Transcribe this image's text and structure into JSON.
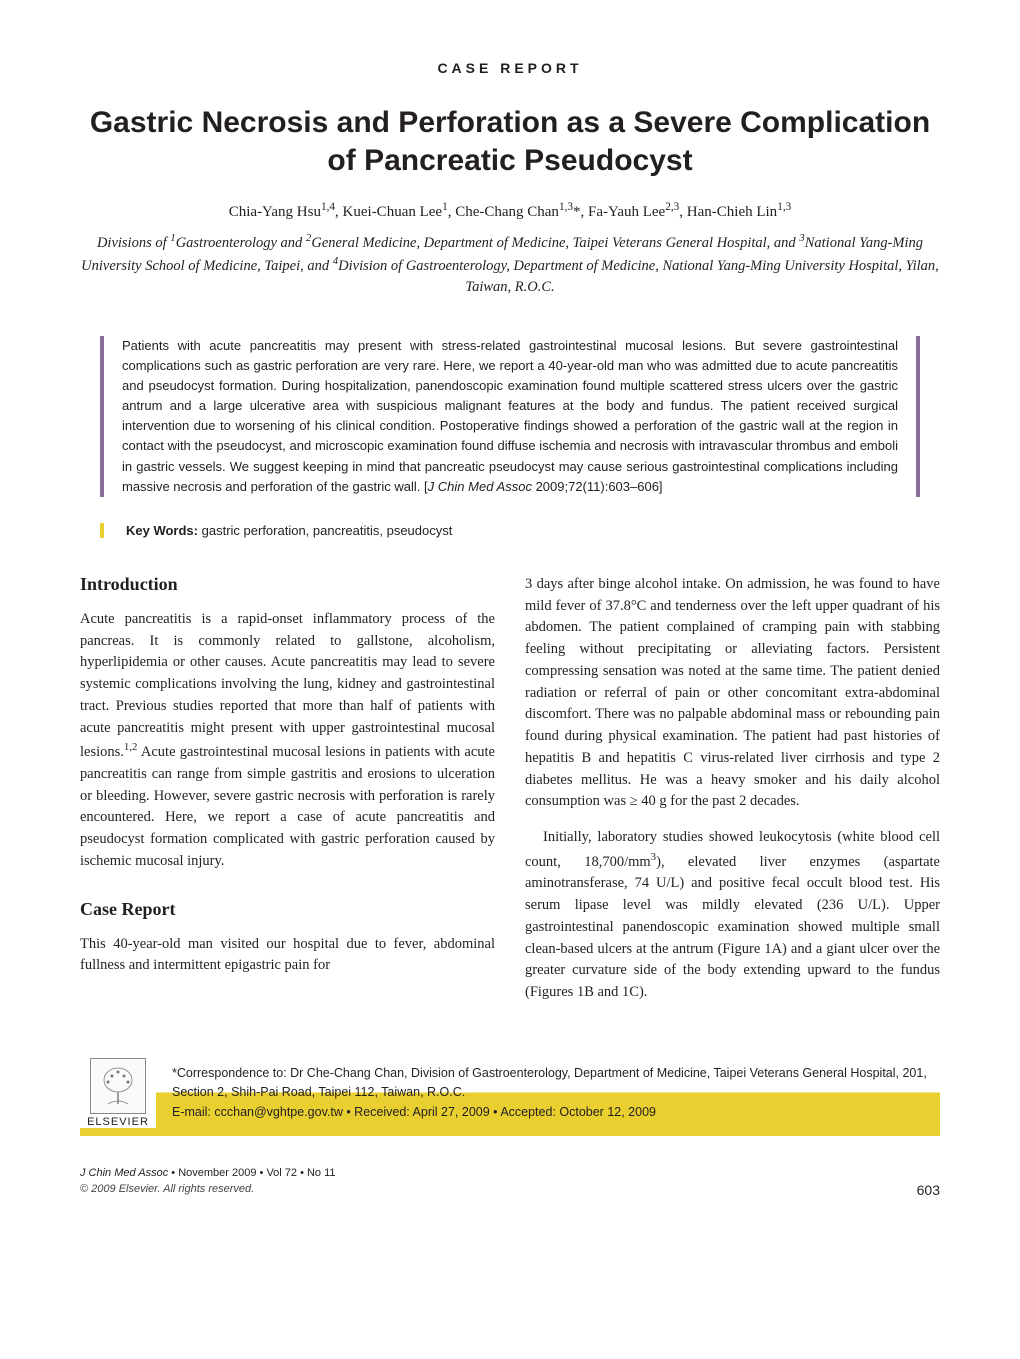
{
  "colors": {
    "text": "#231f20",
    "abstract_border": "#8a6d9b",
    "keywords_border": "#e9cf30",
    "band_yellow": "#e9cf30",
    "background": "#ffffff"
  },
  "section_label": "CASE   REPORT",
  "title": "Gastric Necrosis and Perforation as a Severe Complication of Pancreatic Pseudocyst",
  "authors_html": "Chia-Yang Hsu<sup>1,4</sup>, Kuei-Chuan Lee<sup>1</sup>, Che-Chang Chan<sup>1,3</sup>*, Fa-Yauh Lee<sup>2,3</sup>, Han-Chieh Lin<sup>1,3</sup>",
  "affiliations_html": "Divisions of <sup>1</sup>Gastroenterology and <sup>2</sup>General Medicine, Department of Medicine, Taipei Veterans General Hospital, and <sup>3</sup>National Yang-Ming University School of Medicine, Taipei, and <sup>4</sup>Division of Gastroenterology, Department of Medicine, National Yang-Ming University Hospital, Yilan, Taiwan, R.O.C.",
  "abstract": "Patients with acute pancreatitis may present with stress-related gastrointestinal mucosal lesions. But severe gastrointestinal complications such as gastric perforation are very rare. Here, we report a 40-year-old man who was admitted due to acute pancreatitis and pseudocyst formation. During hospitalization, panendoscopic examination found multiple scattered stress ulcers over the gastric antrum and a large ulcerative area with suspicious malignant features at the body and fundus. The patient received surgical intervention due to worsening of his clinical condition. Postoperative findings showed a perforation of the gastric wall at the region in contact with the pseudocyst, and microscopic examination found diffuse ischemia and necrosis with intravascular thrombus and emboli in gastric vessels. We suggest keeping in mind that pancreatic pseudocyst may cause serious gastrointestinal complications including massive necrosis and perforation of the gastric wall.",
  "abstract_citation_html": "[<i>J Chin Med Assoc</i> 2009;72(11):603–606]",
  "keywords_label": "Key Words:",
  "keywords": "gastric perforation, pancreatitis, pseudocyst",
  "intro_heading": "Introduction",
  "intro_para_html": "Acute pancreatitis is a rapid-onset inflammatory process of the pancreas. It is commonly related to gallstone, alcoholism, hyperlipidemia or other causes. Acute pancreatitis may lead to severe systemic complications involving the lung, kidney and gastrointestinal tract. Previous studies reported that more than half of patients with acute pancreatitis might present with upper gastrointestinal mucosal lesions.<sup>1,2</sup> Acute gastrointestinal mucosal lesions in patients with acute pancreatitis can range from simple gastritis and erosions to ulceration or bleeding. However, severe gastric necrosis with perforation is rarely encountered. Here, we report a case of acute pancreatitis and pseudocyst formation complicated with gastric perforation caused by ischemic mucosal injury.",
  "case_heading": "Case Report",
  "case_para_left": "This 40-year-old man visited our hospital due to fever, abdominal fullness and intermittent epigastric pain for",
  "case_para_right_1": "3 days after binge alcohol intake. On admission, he was found to have mild fever of 37.8°C and tenderness over the left upper quadrant of his abdomen. The patient complained of cramping pain with stabbing feeling without precipitating or alleviating factors. Persistent compressing sensation was noted at the same time. The patient denied radiation or referral of pain or other concomitant extra-abdominal discomfort. There was no palpable abdominal mass or rebounding pain found during physical examination. The patient had past histories of hepatitis B and hepatitis C virus-related liver cirrhosis and type 2 diabetes mellitus. He was a heavy smoker and his daily alcohol consumption was ≥ 40 g for the past 2 decades.",
  "case_para_right_2_html": "Initially, laboratory studies showed leukocytosis (white blood cell count, 18,700/mm<sup>3</sup>), elevated liver enzymes (aspartate aminotransferase, 74 U/L) and positive fecal occult blood test. His serum lipase level was mildly elevated (236 U/L). Upper gastrointestinal panendoscopic examination showed multiple small clean-based ulcers at the antrum (Figure 1A) and a giant ulcer over the greater curvature side of the body extending upward to the fundus (Figures 1B and 1C).",
  "correspondence": {
    "line1": "*Correspondence to: Dr Che-Chang Chan, Division of Gastroenterology, Department of Medicine, Taipei Veterans General Hospital, 201, Section 2, Shih-Pai Road, Taipei 112, Taiwan, R.O.C.",
    "line2": "E-mail: ccchan@vghtpe.gov.tw  •  Received: April 27, 2009  •  Accepted: October 12, 2009"
  },
  "elsevier_label": "ELSEVIER",
  "footer": {
    "journal_html": "<span class=\"journal-ref\">J Chin Med Assoc</span> • November 2009 • Vol 72 • No 11",
    "copyright": "© 2009 Elsevier. All rights reserved.",
    "page": "603"
  }
}
